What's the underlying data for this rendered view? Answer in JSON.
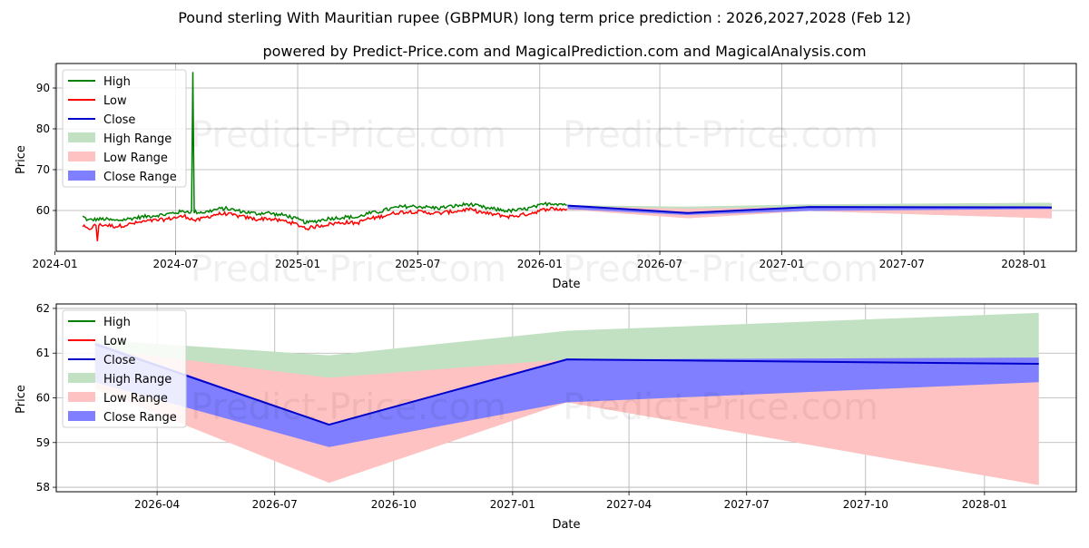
{
  "title": "Pound sterling With Mauritian rupee (GBPMUR) long term price prediction : 2026,2027,2028 (Feb 12)",
  "subtitle": "powered by Predict-Price.com and MagicalPrediction.com and MagicalAnalysis.com",
  "watermark": "Predict-Price.com",
  "colors": {
    "high": "#008000",
    "low": "#ff0000",
    "close": "#0000cc",
    "high_range": "#c2e0c2",
    "low_range": "#ffc2c2",
    "close_range": "#7f7fff"
  },
  "chart_data": [
    {
      "type": "line",
      "name": "top-history-chart",
      "xlabel": "Date",
      "ylabel": "Price",
      "xlim": [
        "2024-01-03",
        "2028-03-20"
      ],
      "ylim": [
        50,
        96
      ],
      "x_ticks": [
        "2024-01-01",
        "2024-07-01",
        "2025-01-01",
        "2025-07-01",
        "2026-01-01",
        "2026-07-01",
        "2027-01-01",
        "2027-07-01",
        "2028-01-01"
      ],
      "x_tick_labels": [
        "2024-01",
        "2024-07",
        "2025-01",
        "2025-07",
        "2026-01",
        "2026-07",
        "2027-01",
        "2027-07",
        "2028-01"
      ],
      "y_ticks": [
        60,
        70,
        80,
        90
      ],
      "grid": true,
      "legend": [
        "High",
        "Low",
        "Close",
        "High Range",
        "Low Range",
        "Close Range"
      ],
      "legend_position": "top-left",
      "history": {
        "dates": [
          "2024-02-12",
          "2024-02-20",
          "2024-03-01",
          "2024-03-15",
          "2024-04-01",
          "2024-04-15",
          "2024-05-01",
          "2024-05-15",
          "2024-06-01",
          "2024-06-15",
          "2024-07-01",
          "2024-07-15",
          "2024-08-01",
          "2024-08-15",
          "2024-09-01",
          "2024-09-15",
          "2024-10-01",
          "2024-10-15",
          "2024-11-01",
          "2024-11-15",
          "2024-12-01",
          "2024-12-15",
          "2025-01-01",
          "2025-01-15",
          "2025-02-01",
          "2025-02-15",
          "2025-03-01",
          "2025-03-15",
          "2025-04-01",
          "2025-04-15",
          "2025-05-01",
          "2025-05-15",
          "2025-06-01",
          "2025-06-15",
          "2025-07-01",
          "2025-07-15",
          "2025-08-01",
          "2025-08-15",
          "2025-09-01",
          "2025-09-15",
          "2025-10-01",
          "2025-10-15",
          "2025-11-01",
          "2025-11-15",
          "2025-12-01",
          "2025-12-15",
          "2026-01-01",
          "2026-01-15",
          "2026-02-01",
          "2026-02-12"
        ],
        "high": [
          58.5,
          57.6,
          57.8,
          57.9,
          57.5,
          57.8,
          58.2,
          58.5,
          58.8,
          59.0,
          59.5,
          59.8,
          59.6,
          59.6,
          60.3,
          60.5,
          60.0,
          59.6,
          59.2,
          59.5,
          59.0,
          58.8,
          57.8,
          57.0,
          57.5,
          58.0,
          58.2,
          58.4,
          58.3,
          59.2,
          59.6,
          60.2,
          60.8,
          61.0,
          61.0,
          60.8,
          60.6,
          60.9,
          61.2,
          61.6,
          61.0,
          60.5,
          60.2,
          59.9,
          60.1,
          60.5,
          61.2,
          61.8,
          61.6,
          61.5
        ],
        "low": [
          56.2,
          55.3,
          56.3,
          56.5,
          56.1,
          56.4,
          56.9,
          57.3,
          57.6,
          57.8,
          58.3,
          58.6,
          57.5,
          58.3,
          59.1,
          59.2,
          58.7,
          58.3,
          57.8,
          58.1,
          57.6,
          57.4,
          56.5,
          55.6,
          56.2,
          56.6,
          56.9,
          57.1,
          56.9,
          57.9,
          58.3,
          58.9,
          59.5,
          59.7,
          59.7,
          59.5,
          59.3,
          59.6,
          59.9,
          60.3,
          59.7,
          59.2,
          58.9,
          58.5,
          58.8,
          59.2,
          59.9,
          60.5,
          60.3,
          60.3
        ],
        "spikes": [
          {
            "date": "2024-03-05",
            "low": 52.5
          },
          {
            "date": "2024-07-27",
            "high": 93.9
          }
        ]
      }
    },
    {
      "type": "area",
      "name": "bottom-forecast-chart",
      "xlabel": "Date",
      "ylabel": "Price",
      "xlim": [
        "2026-01-13",
        "2028-03-12"
      ],
      "ylim": [
        57.9,
        62.1
      ],
      "x_ticks": [
        "2026-04-01",
        "2026-07-01",
        "2026-10-01",
        "2027-01-01",
        "2027-04-01",
        "2027-07-01",
        "2027-10-01",
        "2028-01-01"
      ],
      "x_tick_labels": [
        "2026-04",
        "2026-07",
        "2026-10",
        "2027-01",
        "2027-04",
        "2027-07",
        "2027-10",
        "2028-01"
      ],
      "y_ticks": [
        58,
        59,
        60,
        61,
        62
      ],
      "grid": true,
      "legend": [
        "High",
        "Low",
        "Close",
        "High Range",
        "Low Range",
        "Close Range"
      ],
      "legend_position": "top-left",
      "forecast": {
        "dates": [
          "2026-02-12",
          "2026-08-12",
          "2027-02-12",
          "2028-02-12"
        ],
        "close": [
          61.2,
          59.4,
          60.86,
          60.76
        ],
        "high_range": [
          [
            61.3,
            60.5
          ],
          [
            60.95,
            58.1
          ],
          [
            61.5,
            59.9
          ],
          [
            61.9,
            58.05
          ]
        ],
        "low_range": [
          [
            61.1,
            60.2
          ],
          [
            60.45,
            58.1
          ],
          [
            60.86,
            59.9
          ],
          [
            60.35,
            58.05
          ]
        ],
        "close_range": [
          [
            61.25,
            60.35
          ],
          [
            59.4,
            58.9
          ],
          [
            60.86,
            59.9
          ],
          [
            60.9,
            60.35
          ]
        ]
      }
    }
  ]
}
